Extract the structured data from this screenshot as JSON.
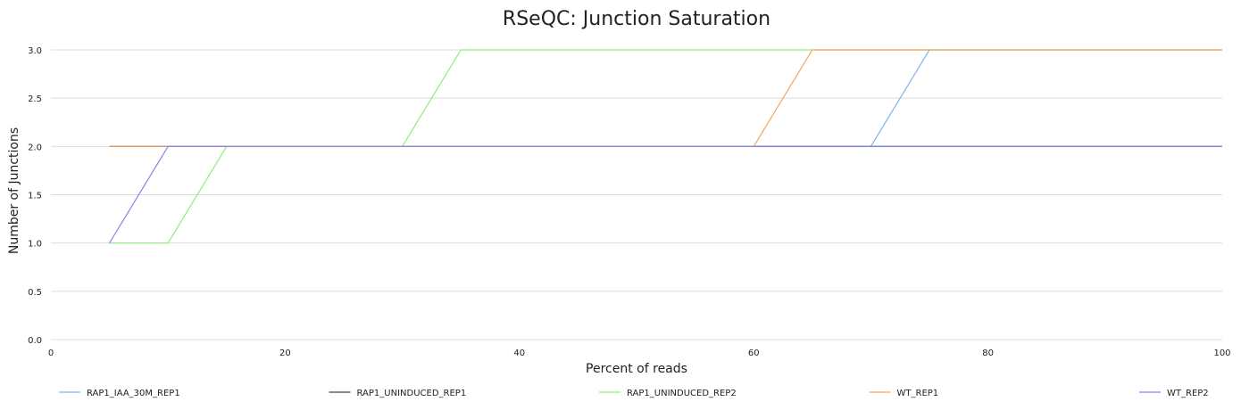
{
  "chart_data": {
    "type": "line",
    "title": "RSeQC: Junction Saturation",
    "xlabel": "Percent of reads",
    "ylabel": "Number of Junctions",
    "xlim": [
      0,
      100
    ],
    "ylim": [
      0,
      3
    ],
    "xticks": [
      "0",
      "20",
      "40",
      "60",
      "80",
      "100"
    ],
    "yticks": [
      "0.0",
      "0.5",
      "1.0",
      "1.5",
      "2.0",
      "2.5",
      "3.0"
    ],
    "grid": "horizontal",
    "legend_position": "bottom",
    "x": [
      5,
      10,
      15,
      20,
      25,
      30,
      35,
      40,
      45,
      50,
      55,
      60,
      65,
      70,
      75,
      80,
      85,
      90,
      95,
      100
    ],
    "series": [
      {
        "name": "RAP1_IAA_30M_REP1",
        "color": "#7cb5ec",
        "values": [
          2,
          2,
          2,
          2,
          2,
          2,
          2,
          2,
          2,
          2,
          2,
          2,
          2,
          2,
          3,
          3,
          3,
          3,
          3,
          3
        ]
      },
      {
        "name": "RAP1_UNINDUCED_REP1",
        "color": "#434348",
        "values": [
          2,
          2,
          2,
          2,
          2,
          2,
          2,
          2,
          2,
          2,
          2,
          2,
          2,
          2,
          2,
          2,
          2,
          2,
          2,
          2
        ]
      },
      {
        "name": "RAP1_UNINDUCED_REP2",
        "color": "#90ed7d",
        "values": [
          1,
          1,
          2,
          2,
          2,
          2,
          3,
          3,
          3,
          3,
          3,
          3,
          3,
          3,
          3,
          3,
          3,
          3,
          3,
          3
        ]
      },
      {
        "name": "WT_REP1",
        "color": "#f7a35c",
        "values": [
          2,
          2,
          2,
          2,
          2,
          2,
          2,
          2,
          2,
          2,
          2,
          2,
          3,
          3,
          3,
          3,
          3,
          3,
          3,
          3
        ]
      },
      {
        "name": "WT_REP2",
        "color": "#8085e9",
        "values": [
          1,
          2,
          2,
          2,
          2,
          2,
          2,
          2,
          2,
          2,
          2,
          2,
          2,
          2,
          2,
          2,
          2,
          2,
          2,
          2
        ]
      }
    ]
  }
}
